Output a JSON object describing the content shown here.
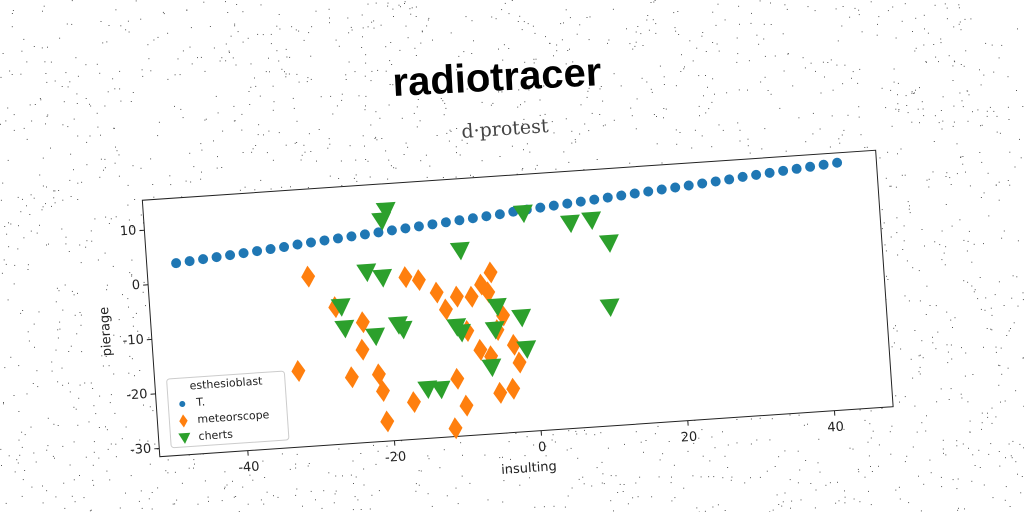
{
  "chart_data": {
    "type": "scatter",
    "title": "radiotracer",
    "subtitle": "d·protest",
    "xlabel": "insulting",
    "ylabel": "pierage",
    "xlim": [
      -52,
      48
    ],
    "ylim": [
      -31.5,
      15.5
    ],
    "xticks": [
      -40,
      -20,
      0,
      20,
      40
    ],
    "yticks": [
      -30,
      -20,
      -10,
      0,
      10
    ],
    "legend_title": "esthesioblast",
    "legend": "lower left",
    "series": [
      {
        "name": "T.",
        "color": "#1f77b4",
        "marker": "o",
        "x": [
          -48,
          -46.15,
          -44.3,
          -42.45,
          -40.6,
          -38.75,
          -36.9,
          -35.05,
          -33.2,
          -31.35,
          -29.5,
          -27.65,
          -25.8,
          -23.95,
          -22.1,
          -20.25,
          -18.4,
          -16.55,
          -14.7,
          -12.85,
          -11,
          -9.15,
          -7.3,
          -5.45,
          -3.6,
          -1.75,
          0.1,
          1.95,
          3.8,
          5.65,
          7.5,
          9.35,
          11.2,
          13.05,
          14.9,
          16.75,
          18.6,
          20.45,
          22.3,
          24.15,
          26,
          27.85,
          29.7,
          31.55,
          33.4,
          35.25,
          37.1,
          38.95,
          40.8,
          42.65
        ],
        "y": [
          3.6,
          3.8,
          4,
          4.2,
          4.4,
          4.6,
          4.8,
          5,
          5.2,
          5.5,
          5.7,
          5.9,
          6.1,
          6.3,
          6.5,
          6.7,
          6.9,
          7.1,
          7.3,
          7.5,
          7.7,
          7.9,
          8.1,
          8.3,
          8.5,
          8.8,
          9,
          9.2,
          9.4,
          9.6,
          9.8,
          10,
          10.2,
          10.4,
          10.6,
          10.8,
          11,
          11.2,
          11.4,
          11.6,
          11.8,
          12,
          12.3,
          12.5,
          12.7,
          12.9,
          13.1,
          13.3,
          13.5,
          13.7
        ]
      },
      {
        "name": "meteorscope",
        "color": "#ff7f0e",
        "marker": "d",
        "x": [
          -30.2,
          -32.4,
          -26.8,
          -25.2,
          -23.2,
          -23.5,
          -21.5,
          -21.1,
          -20.8,
          -17,
          -17,
          -15.2,
          -12.9,
          -11.8,
          -10.9,
          -11.6,
          -9.9,
          -10.2,
          -8.2,
          -9.1,
          -7.5,
          -6.8,
          -5.4,
          -5.9,
          -5.2,
          -3.4,
          -2.9,
          -2.3,
          -4.1,
          -5,
          -6.1
        ],
        "y": [
          -0.5,
          -17.6,
          -6.4,
          -19.4,
          -9.5,
          -14.5,
          -19.2,
          -22.3,
          -27.9,
          -1.8,
          -24.7,
          -2.5,
          -5,
          -8.2,
          -21,
          -30,
          -26,
          -6,
          -6.2,
          -12.4,
          -16,
          -4.1,
          -2,
          -5.6,
          -24.1,
          -23.5,
          -15.5,
          -18.8,
          -10,
          -12.6,
          -17.3
        ]
      },
      {
        "name": "cherts",
        "color": "#2ca02c",
        "marker": "v",
        "x": [
          -19,
          -19.7,
          -0.4,
          5.9,
          8.8,
          11,
          10.5,
          -9.3,
          -22.2,
          -20.1,
          -26,
          -25.7,
          -21.6,
          -18.4,
          -17.8,
          -15,
          -13.2,
          -10.5,
          -9.9,
          -4.8,
          -5.3,
          -6.1,
          -1.6,
          -1.2
        ],
        "y": [
          10.6,
          8.8,
          8.4,
          6,
          6.3,
          1.9,
          -9.8,
          2.4,
          -0.4,
          -1.6,
          -6.4,
          -10.4,
          -12.2,
          -10.4,
          -11.3,
          -22.5,
          -22.7,
          -11.5,
          -12.6,
          -8.3,
          -12.5,
          -19.3,
          -10.6,
          -16.4
        ]
      }
    ]
  }
}
